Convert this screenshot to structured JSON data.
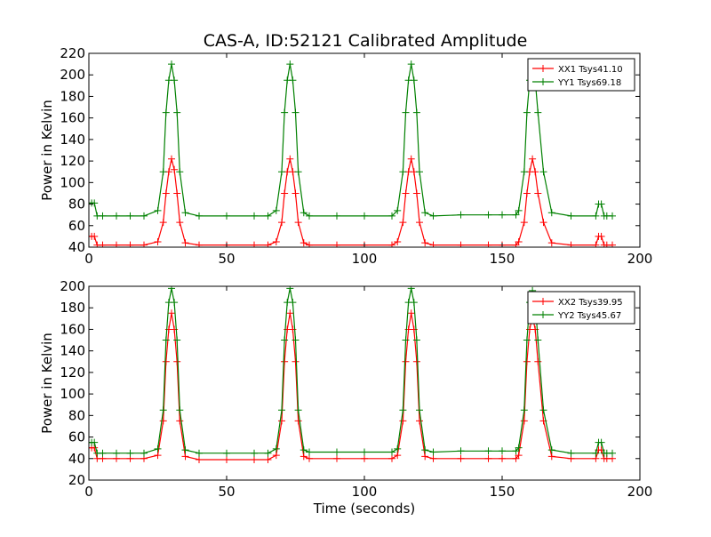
{
  "figure": {
    "title": "CAS-A, ID:52121 Calibrated Amplitude"
  },
  "chart_data": [
    {
      "type": "line",
      "title": "CAS-A, ID:52121 Calibrated Amplitude",
      "xlabel": "",
      "ylabel": "Power in Kelvin",
      "xlim": [
        0,
        200
      ],
      "ylim": [
        40,
        220
      ],
      "xticks": [
        "0",
        "50",
        "100",
        "150",
        "200"
      ],
      "yticks": [
        "40",
        "60",
        "80",
        "100",
        "120",
        "140",
        "160",
        "180",
        "200",
        "220"
      ],
      "legend_position": "top-right",
      "grid": false,
      "marker": "+",
      "series": [
        {
          "name": "XX1 Tsys41.10",
          "color": "#ff0000",
          "x": [
            0,
            1,
            2,
            3,
            5,
            10,
            15,
            20,
            25,
            27,
            28,
            29,
            30,
            31,
            32,
            33,
            35,
            40,
            50,
            60,
            65,
            68,
            70,
            71,
            72,
            73,
            74,
            75,
            76,
            78,
            80,
            90,
            100,
            110,
            112,
            114,
            115,
            116,
            117,
            118,
            119,
            120,
            122,
            125,
            135,
            145,
            150,
            155,
            156,
            158,
            159,
            160,
            161,
            162,
            163,
            165,
            168,
            175,
            184,
            185,
            186,
            187,
            188,
            190
          ],
          "values": [
            50,
            50,
            50,
            42,
            42,
            42,
            42,
            42,
            45,
            63,
            90,
            110,
            122,
            112,
            90,
            63,
            44,
            42,
            42,
            42,
            42,
            45,
            63,
            90,
            110,
            122,
            110,
            90,
            63,
            44,
            42,
            42,
            42,
            42,
            45,
            63,
            90,
            110,
            122,
            110,
            90,
            63,
            44,
            42,
            42,
            42,
            42,
            42,
            45,
            63,
            90,
            110,
            122,
            110,
            90,
            63,
            44,
            42,
            42,
            50,
            50,
            42,
            42,
            42
          ]
        },
        {
          "name": "YY1 Tsys69.18",
          "color": "#008000",
          "x": [
            0,
            1,
            2,
            3,
            5,
            10,
            15,
            20,
            25,
            27,
            28,
            29,
            30,
            31,
            32,
            33,
            35,
            40,
            50,
            60,
            65,
            68,
            70,
            71,
            72,
            73,
            74,
            75,
            76,
            78,
            80,
            90,
            100,
            110,
            112,
            114,
            115,
            116,
            117,
            118,
            119,
            120,
            122,
            125,
            135,
            145,
            150,
            155,
            156,
            158,
            159,
            160,
            161,
            162,
            163,
            165,
            168,
            175,
            184,
            185,
            186,
            187,
            188,
            190
          ],
          "values": [
            81,
            81,
            81,
            69,
            69,
            69,
            69,
            69,
            74,
            110,
            165,
            195,
            210,
            195,
            165,
            110,
            72,
            69,
            69,
            69,
            69,
            74,
            110,
            165,
            195,
            210,
            195,
            165,
            110,
            72,
            69,
            69,
            69,
            69,
            74,
            110,
            165,
            195,
            210,
            195,
            165,
            110,
            72,
            69,
            70,
            70,
            70,
            70,
            74,
            110,
            165,
            195,
            210,
            195,
            165,
            110,
            72,
            69,
            69,
            80,
            80,
            69,
            69,
            69
          ]
        }
      ]
    },
    {
      "type": "line",
      "title": "",
      "xlabel": "Time (seconds)",
      "ylabel": "Power in Kelvin",
      "xlim": [
        0,
        200
      ],
      "ylim": [
        20,
        200
      ],
      "xticks": [
        "0",
        "50",
        "100",
        "150",
        "200"
      ],
      "yticks": [
        "20",
        "40",
        "60",
        "80",
        "100",
        "120",
        "140",
        "160",
        "180",
        "200"
      ],
      "legend_position": "top-right",
      "grid": false,
      "marker": "+",
      "series": [
        {
          "name": "XX2 Tsys39.95",
          "color": "#ff0000",
          "x": [
            0,
            1,
            2,
            3,
            5,
            10,
            15,
            20,
            25,
            27,
            28,
            29,
            30,
            31,
            32,
            33,
            35,
            40,
            50,
            60,
            65,
            68,
            70,
            71,
            72,
            73,
            74,
            75,
            76,
            78,
            80,
            90,
            100,
            110,
            112,
            114,
            115,
            116,
            117,
            118,
            119,
            120,
            122,
            125,
            135,
            145,
            150,
            155,
            156,
            158,
            159,
            160,
            161,
            162,
            163,
            165,
            168,
            175,
            184,
            185,
            186,
            187,
            188,
            190
          ],
          "values": [
            50,
            50,
            50,
            40,
            40,
            40,
            40,
            40,
            43,
            75,
            130,
            160,
            175,
            160,
            130,
            75,
            42,
            39,
            39,
            39,
            39,
            43,
            75,
            130,
            160,
            175,
            160,
            130,
            75,
            42,
            40,
            40,
            40,
            40,
            43,
            75,
            130,
            160,
            175,
            160,
            130,
            75,
            42,
            40,
            40,
            40,
            40,
            40,
            43,
            75,
            130,
            160,
            172,
            160,
            130,
            75,
            42,
            40,
            40,
            48,
            48,
            40,
            40,
            40
          ]
        },
        {
          "name": "YY2 Tsys45.67",
          "color": "#008000",
          "x": [
            0,
            1,
            2,
            3,
            5,
            10,
            15,
            20,
            25,
            27,
            28,
            29,
            30,
            31,
            32,
            33,
            35,
            40,
            50,
            60,
            65,
            68,
            70,
            71,
            72,
            73,
            74,
            75,
            76,
            78,
            80,
            90,
            100,
            110,
            112,
            114,
            115,
            116,
            117,
            118,
            119,
            120,
            122,
            125,
            135,
            145,
            150,
            155,
            156,
            158,
            159,
            160,
            161,
            162,
            163,
            165,
            168,
            175,
            184,
            185,
            186,
            187,
            188,
            190
          ],
          "values": [
            55,
            55,
            55,
            45,
            45,
            45,
            45,
            45,
            49,
            85,
            150,
            185,
            198,
            185,
            150,
            85,
            48,
            45,
            45,
            45,
            45,
            49,
            85,
            150,
            185,
            198,
            185,
            150,
            85,
            48,
            46,
            46,
            46,
            46,
            49,
            85,
            150,
            185,
            198,
            185,
            150,
            85,
            48,
            46,
            47,
            47,
            47,
            47,
            50,
            85,
            150,
            185,
            196,
            185,
            150,
            85,
            48,
            45,
            45,
            55,
            55,
            45,
            45,
            45
          ]
        }
      ]
    }
  ]
}
